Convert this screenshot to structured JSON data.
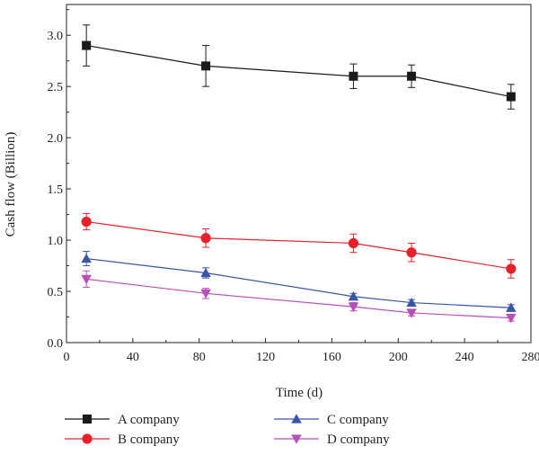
{
  "chart_data": {
    "type": "line",
    "xlabel": "Time (d)",
    "ylabel": "Cash flow (Billion)",
    "xlim": [
      0,
      280
    ],
    "ylim": [
      0,
      3.3
    ],
    "xticks": [
      "0",
      "40",
      "80",
      "120",
      "160",
      "200",
      "240",
      "280"
    ],
    "yticks": [
      "0.0",
      "0.5",
      "1.0",
      "1.5",
      "2.0",
      "2.5",
      "3.0"
    ],
    "grid": false,
    "legend_position": "bottom",
    "x": [
      12,
      84,
      173,
      208,
      268
    ],
    "series": [
      {
        "name": "A company",
        "color": "#1a1a1a",
        "marker": "square",
        "values": [
          2.9,
          2.7,
          2.6,
          2.6,
          2.4
        ],
        "errors": [
          0.2,
          0.2,
          0.12,
          0.11,
          0.12
        ]
      },
      {
        "name": "B company",
        "color": "#e8202a",
        "marker": "circle",
        "values": [
          1.18,
          1.02,
          0.97,
          0.88,
          0.72
        ],
        "errors": [
          0.08,
          0.09,
          0.09,
          0.09,
          0.09
        ]
      },
      {
        "name": "C company",
        "color": "#3a55a6",
        "marker": "triangle-up",
        "values": [
          0.82,
          0.68,
          0.45,
          0.39,
          0.34
        ],
        "errors": [
          0.07,
          0.05,
          0.03,
          0.03,
          0.03
        ]
      },
      {
        "name": "D company",
        "color": "#b84fb8",
        "marker": "triangle-down",
        "values": [
          0.62,
          0.48,
          0.35,
          0.29,
          0.24
        ],
        "errors": [
          0.08,
          0.05,
          0.04,
          0.03,
          0.03
        ]
      }
    ]
  }
}
